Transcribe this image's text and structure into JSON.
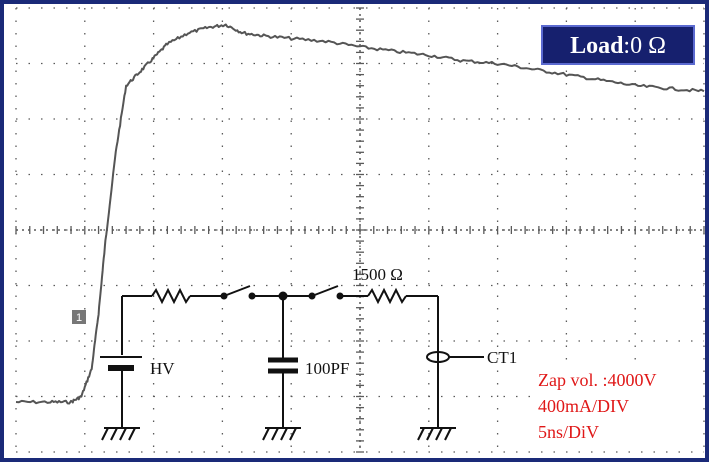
{
  "badge": {
    "prefix": "Load",
    "value": ":0 Ω"
  },
  "marker": {
    "label": "1"
  },
  "circuit": {
    "source_label": "HV",
    "capacitor_label": "100PF",
    "resistor_label": "1500 Ω",
    "probe_label": "CT1"
  },
  "settings": {
    "zap_voltage": "Zap vol. :4000V",
    "vertical_scale": "400mA/DIV",
    "time_scale": "5ns/DiV"
  },
  "colors": {
    "frame": "#1a2a78",
    "screen_bg": "#ffffff",
    "grid": "#5a5a5a",
    "trace": "#555555",
    "badge_bg": "#16206e",
    "badge_text": "#ffffff",
    "settings_text": "#e01818",
    "circuit": "#111111"
  },
  "chart_data": {
    "type": "line",
    "title": "",
    "xlabel": "",
    "ylabel": "",
    "x_units": "divisions",
    "y_units": "divisions",
    "xlim": [
      0,
      10
    ],
    "ylim": [
      -4,
      4
    ],
    "series": [
      {
        "x": [
          0,
          0.5,
          0.8,
          0.95,
          1.1,
          1.2,
          1.3,
          1.45,
          1.6,
          1.8,
          2.0,
          2.2,
          2.5,
          2.8,
          3.05,
          3.3,
          3.6,
          4.0,
          4.5,
          5.0,
          5.5,
          6.0,
          6.5,
          7.0,
          7.5,
          8.0,
          8.5,
          9.0,
          9.5,
          10.0
        ],
        "y": [
          -3.1,
          -3.1,
          -3.1,
          -3.0,
          -2.5,
          -1.5,
          -0.2,
          1.4,
          2.6,
          2.85,
          3.1,
          3.35,
          3.55,
          3.65,
          3.7,
          3.55,
          3.5,
          3.45,
          3.4,
          3.3,
          3.22,
          3.15,
          3.05,
          3.0,
          2.9,
          2.8,
          2.7,
          2.6,
          2.55,
          2.5
        ]
      }
    ]
  }
}
